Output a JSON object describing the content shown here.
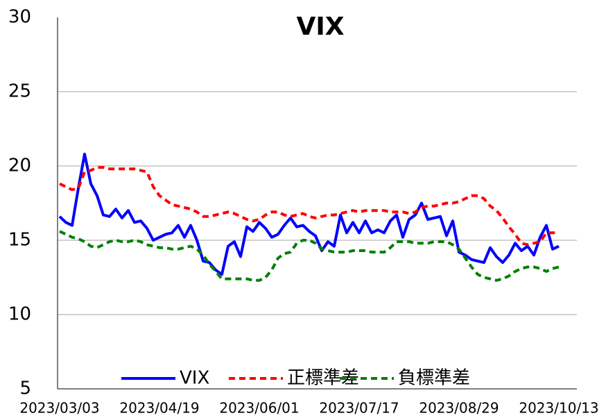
{
  "chart_data": {
    "type": "line",
    "title": "VIX",
    "categories": [
      "2023/03/03",
      null,
      null,
      null,
      null,
      null,
      null,
      null,
      null,
      null,
      null,
      null,
      null,
      null,
      null,
      null,
      "2023/04/19",
      null,
      null,
      null,
      null,
      null,
      null,
      null,
      null,
      null,
      null,
      null,
      null,
      null,
      null,
      null,
      "2023/06/01",
      null,
      null,
      null,
      null,
      null,
      null,
      null,
      null,
      null,
      null,
      null,
      null,
      null,
      null,
      null,
      "2023/07/17",
      null,
      null,
      null,
      null,
      null,
      null,
      null,
      null,
      null,
      null,
      null,
      null,
      null,
      null,
      null,
      "2023/08/29",
      null,
      null,
      null,
      null,
      null,
      null,
      null,
      null,
      null,
      null,
      null,
      null,
      null,
      null,
      null,
      "2023/10/13"
    ],
    "series": [
      {
        "name": "VIX",
        "color": "#0000ff",
        "style": "solid",
        "values": [
          16.6,
          16.2,
          16.0,
          18.5,
          20.8,
          18.8,
          18.0,
          16.7,
          16.6,
          17.1,
          16.5,
          17.0,
          16.2,
          16.3,
          15.8,
          15.0,
          15.2,
          15.4,
          15.5,
          16.0,
          15.2,
          16.0,
          15.0,
          13.6,
          13.5,
          13.0,
          12.7,
          14.6,
          14.9,
          13.9,
          15.9,
          15.6,
          16.2,
          15.8,
          15.2,
          15.4,
          16.0,
          16.5,
          15.9,
          16.0,
          15.6,
          15.3,
          14.3,
          14.9,
          14.6,
          16.7,
          15.5,
          16.2,
          15.5,
          16.3,
          15.5,
          15.7,
          15.5,
          16.3,
          16.7,
          15.2,
          16.4,
          16.7,
          17.5,
          16.4,
          16.5,
          16.6,
          15.3,
          16.3,
          14.2,
          14.0,
          13.7,
          13.6,
          13.5,
          14.5,
          13.9,
          13.5,
          14.0,
          14.8,
          14.3,
          14.6,
          14.0,
          15.2,
          16.0,
          14.4,
          14.6
        ]
      },
      {
        "name": "正標準差",
        "color": "#ff0000",
        "style": "dashed",
        "values": [
          18.8,
          18.6,
          18.4,
          18.5,
          19.6,
          19.7,
          19.9,
          19.9,
          19.8,
          19.8,
          19.8,
          19.8,
          19.8,
          19.7,
          19.6,
          18.6,
          18.0,
          17.7,
          17.4,
          17.3,
          17.2,
          17.1,
          16.9,
          16.6,
          16.6,
          16.7,
          16.8,
          16.9,
          16.8,
          16.6,
          16.4,
          16.3,
          16.4,
          16.7,
          16.9,
          16.9,
          16.7,
          16.6,
          16.7,
          16.8,
          16.6,
          16.5,
          16.6,
          16.7,
          16.7,
          16.8,
          16.9,
          17.0,
          16.9,
          17.0,
          17.0,
          17.0,
          17.0,
          16.9,
          16.9,
          16.9,
          16.8,
          16.9,
          17.2,
          17.3,
          17.3,
          17.4,
          17.5,
          17.5,
          17.6,
          17.8,
          18.0,
          18.0,
          17.8,
          17.3,
          17.0,
          16.5,
          15.9,
          15.4,
          14.8,
          14.7,
          14.8,
          14.9,
          15.5,
          15.5,
          15.5
        ]
      },
      {
        "name": "負標準差",
        "color": "#008000",
        "style": "dashed",
        "values": [
          15.6,
          15.4,
          15.2,
          15.1,
          14.9,
          14.6,
          14.5,
          14.7,
          14.9,
          15.0,
          14.9,
          14.9,
          15.0,
          14.9,
          14.7,
          14.6,
          14.5,
          14.5,
          14.4,
          14.4,
          14.5,
          14.6,
          14.4,
          14.0,
          13.4,
          12.9,
          12.4,
          12.4,
          12.4,
          12.4,
          12.4,
          12.3,
          12.3,
          12.5,
          13.0,
          13.8,
          14.1,
          14.2,
          14.8,
          15.0,
          15.0,
          14.8,
          14.4,
          14.3,
          14.2,
          14.2,
          14.2,
          14.3,
          14.3,
          14.3,
          14.2,
          14.2,
          14.2,
          14.5,
          14.9,
          14.9,
          14.9,
          14.8,
          14.8,
          14.8,
          14.9,
          14.9,
          14.9,
          14.7,
          14.4,
          13.8,
          13.2,
          12.7,
          12.5,
          12.4,
          12.3,
          12.4,
          12.6,
          12.9,
          13.1,
          13.2,
          13.2,
          13.1,
          12.9,
          13.1,
          13.2
        ]
      }
    ],
    "ylim": [
      5,
      30
    ],
    "yticks": [
      5,
      10,
      15,
      20,
      25,
      30
    ],
    "grid": true,
    "legend": "bottom"
  }
}
